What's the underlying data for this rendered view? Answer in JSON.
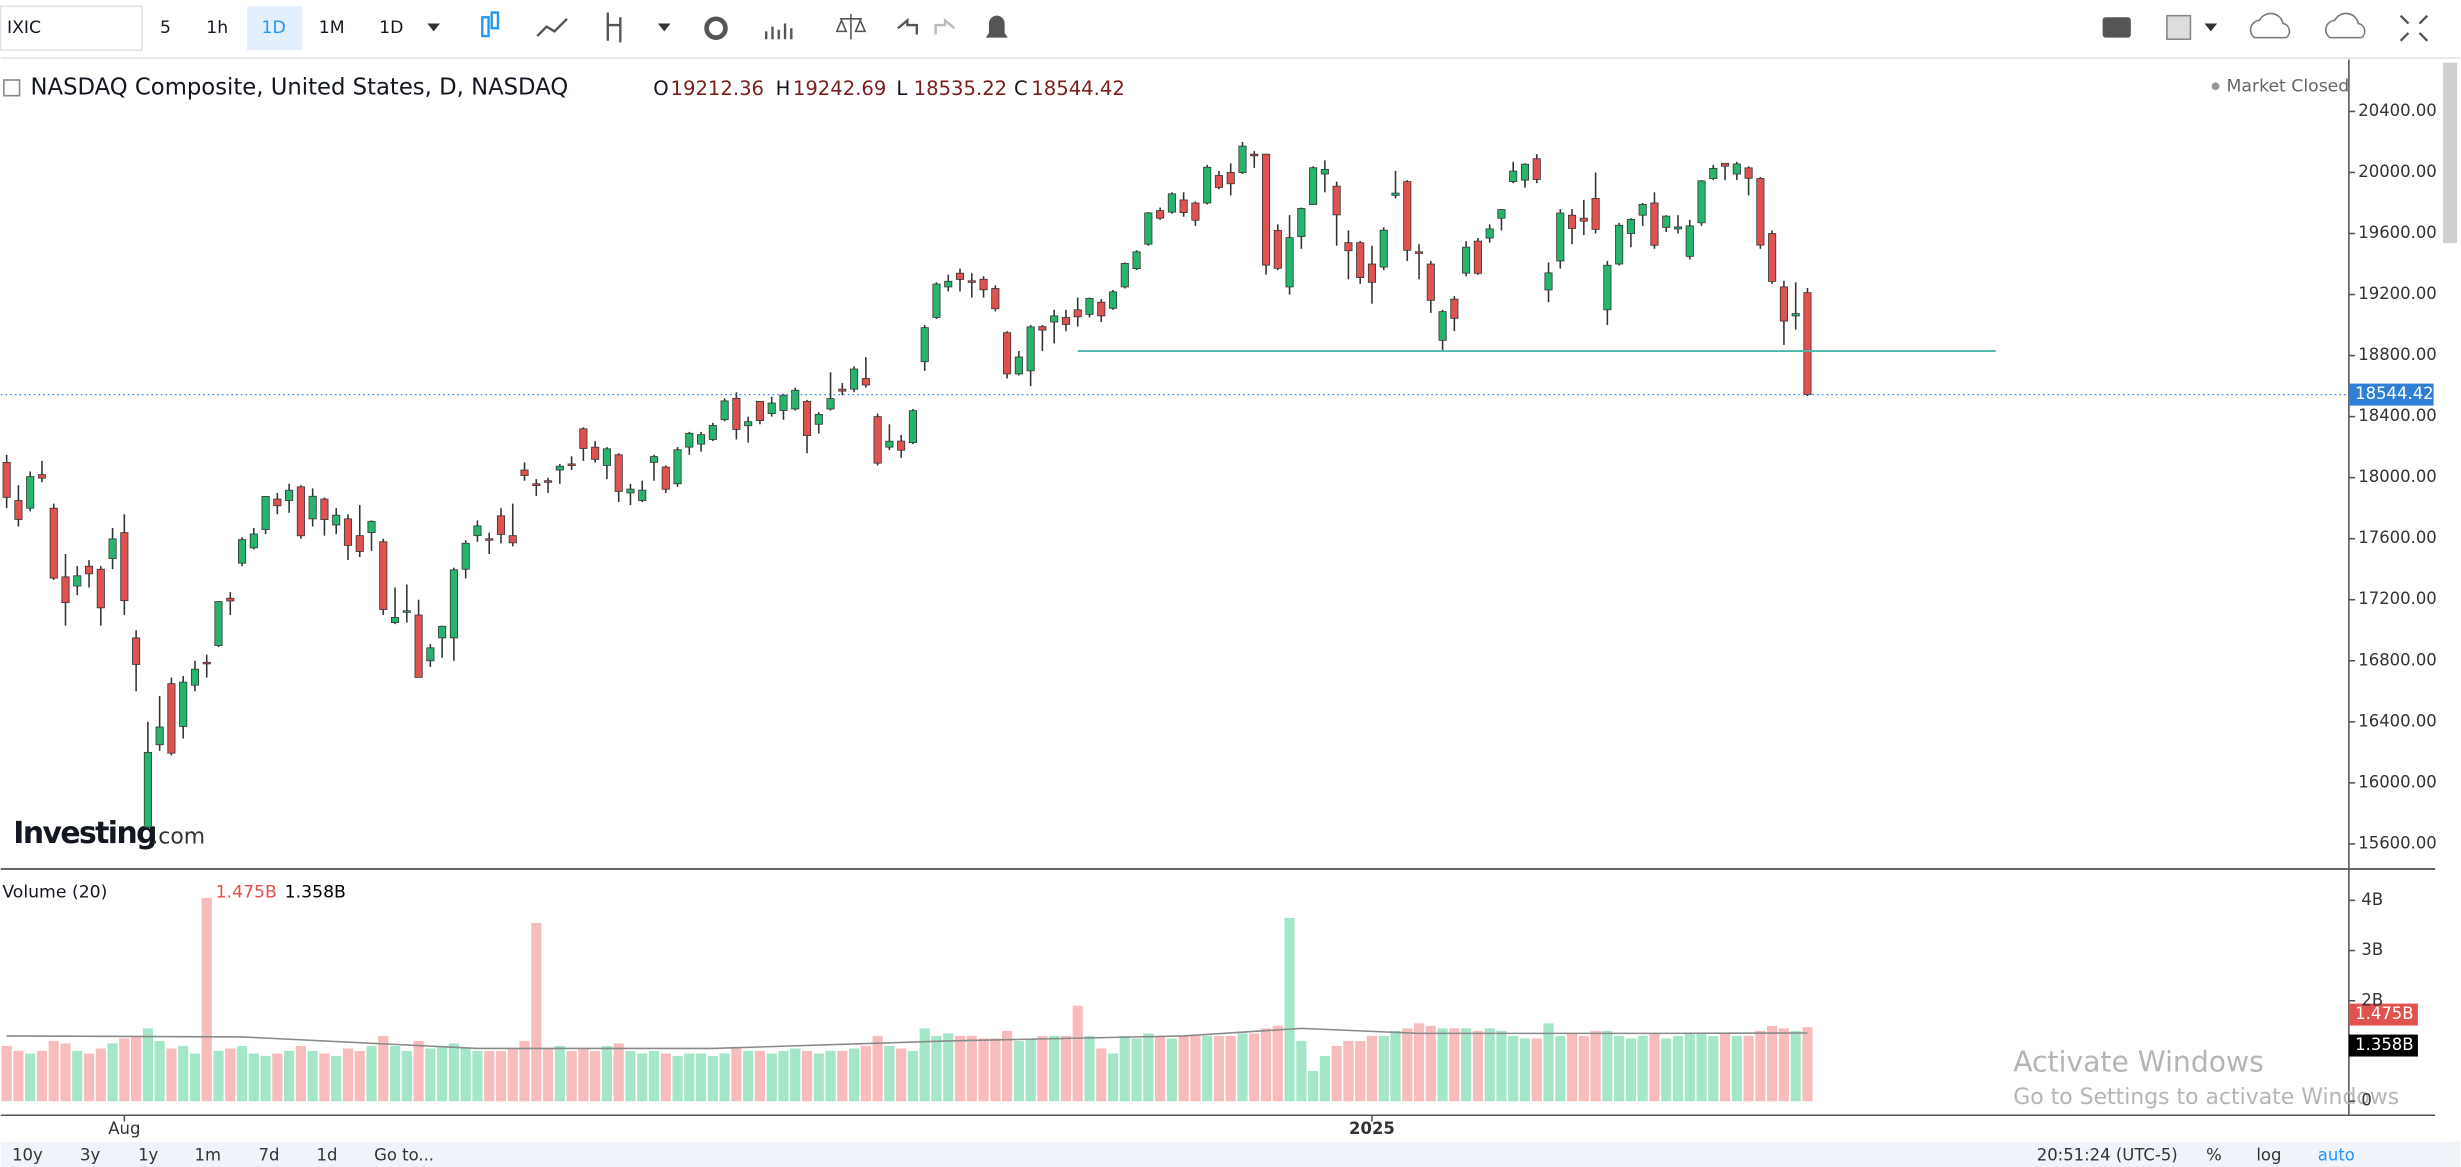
{
  "ui": {
    "symbol": "IXIC",
    "intervals": [
      "5",
      "1h",
      "1D",
      "1M",
      "1D"
    ],
    "title": "NASDAQ Composite, United States, D, NASDAQ",
    "ohlc_labels": [
      "O",
      "H",
      "L",
      "C"
    ],
    "status": "Market Closed",
    "volume_title": "Volume (20)",
    "watermark": [
      "Investing",
      ".com"
    ],
    "ranges": [
      "10y",
      "3y",
      "1y",
      "1m",
      "7d",
      "1d"
    ],
    "goto": "Go to...",
    "time": "20:51:24 (UTC-5)",
    "options": [
      "%",
      "log",
      "auto"
    ],
    "overlay": [
      "Activate Windows",
      "Go to Settings to activate Windows"
    ]
  },
  "chart_data": {
    "type": "candlestick",
    "up_color": "#26b56c",
    "down_color": "#e0524f",
    "ylim": [
      15446,
      20719
    ],
    "yticks": [
      {
        "value": 15600,
        "label": "15600.00"
      },
      {
        "value": 16000,
        "label": "16000.00"
      },
      {
        "value": 16400,
        "label": "16400.00"
      },
      {
        "value": 16800,
        "label": "16800.00"
      },
      {
        "value": 17200,
        "label": "17200.00"
      },
      {
        "value": 17600,
        "label": "17600.00"
      },
      {
        "value": 18000,
        "label": "18000.00"
      },
      {
        "value": 18400,
        "label": "18400.00"
      },
      {
        "value": 18800,
        "label": "18800.00"
      },
      {
        "value": 19200,
        "label": "19200.00"
      },
      {
        "value": 19600,
        "label": "19600.00"
      },
      {
        "value": 20000,
        "label": "20000.00"
      },
      {
        "value": 20400,
        "label": "20400.00"
      }
    ],
    "xlim": [
      -0.5,
      199
    ],
    "xticks": [
      {
        "value": 10,
        "label": "Aug"
      },
      {
        "value": 116,
        "label": "2025"
      }
    ],
    "ohlc": [
      [
        18100,
        18150,
        17800,
        17871
      ],
      [
        17850,
        17950,
        17680,
        17726
      ],
      [
        17800,
        18040,
        17780,
        18007
      ],
      [
        18020,
        18110,
        17970,
        17997
      ],
      [
        17800,
        17830,
        17330,
        17342
      ],
      [
        17350,
        17500,
        17030,
        17181
      ],
      [
        17290,
        17420,
        17230,
        17357
      ],
      [
        17420,
        17460,
        17280,
        17370
      ],
      [
        17400,
        17420,
        17030,
        17147
      ],
      [
        17470,
        17670,
        17400,
        17599
      ],
      [
        17640,
        17760,
        17100,
        17194
      ],
      [
        16950,
        17000,
        16600,
        16776
      ],
      [
        15710,
        16400,
        15700,
        16200
      ],
      [
        16250,
        16570,
        16210,
        16366
      ],
      [
        16650,
        16690,
        16180,
        16195
      ],
      [
        16370,
        16700,
        16290,
        16660
      ],
      [
        16640,
        16800,
        16600,
        16745
      ],
      [
        16790,
        16840,
        16690,
        16780
      ],
      [
        16900,
        17190,
        16890,
        17188
      ],
      [
        17210,
        17250,
        17100,
        17192
      ],
      [
        17440,
        17610,
        17420,
        17594
      ],
      [
        17540,
        17670,
        17530,
        17631
      ],
      [
        17660,
        17880,
        17630,
        17877
      ],
      [
        17860,
        17900,
        17760,
        17816
      ],
      [
        17850,
        17960,
        17770,
        17918
      ],
      [
        17940,
        17950,
        17600,
        17619
      ],
      [
        17730,
        17930,
        17680,
        17878
      ],
      [
        17860,
        17870,
        17620,
        17725
      ],
      [
        17690,
        17800,
        17630,
        17754
      ],
      [
        17730,
        17760,
        17460,
        17556
      ],
      [
        17620,
        17820,
        17480,
        17516
      ],
      [
        17640,
        17720,
        17520,
        17714
      ],
      [
        17580,
        17600,
        17100,
        17136
      ],
      [
        17050,
        17280,
        17040,
        17084
      ],
      [
        17120,
        17300,
        17050,
        17128
      ],
      [
        17100,
        17200,
        16690,
        16691
      ],
      [
        16800,
        16910,
        16760,
        16885
      ],
      [
        16950,
        17030,
        16820,
        17026
      ],
      [
        16950,
        17410,
        16800,
        17396
      ],
      [
        17400,
        17590,
        17340,
        17570
      ],
      [
        17620,
        17720,
        17580,
        17684
      ],
      [
        17600,
        17640,
        17500,
        17592
      ],
      [
        17750,
        17800,
        17570,
        17628
      ],
      [
        17620,
        17830,
        17550,
        17573
      ],
      [
        18050,
        18100,
        17980,
        18014
      ],
      [
        17960,
        17990,
        17880,
        17948
      ],
      [
        17980,
        18000,
        17900,
        17974
      ],
      [
        18050,
        18090,
        17960,
        18075
      ],
      [
        18090,
        18140,
        18050,
        18082
      ],
      [
        18320,
        18330,
        18110,
        18191
      ],
      [
        18200,
        18240,
        18100,
        18120
      ],
      [
        18080,
        18200,
        17990,
        18189
      ],
      [
        18150,
        18160,
        17840,
        17910
      ],
      [
        17900,
        17960,
        17820,
        17925
      ],
      [
        17850,
        17980,
        17840,
        17918
      ],
      [
        18100,
        18150,
        17980,
        18138
      ],
      [
        18070,
        18080,
        17900,
        17924
      ],
      [
        17960,
        18200,
        17940,
        18183
      ],
      [
        18200,
        18300,
        18150,
        18291
      ],
      [
        18220,
        18300,
        18170,
        18282
      ],
      [
        18250,
        18360,
        18240,
        18342
      ],
      [
        18380,
        18520,
        18370,
        18503
      ],
      [
        18520,
        18560,
        18250,
        18316
      ],
      [
        18340,
        18400,
        18230,
        18367
      ],
      [
        18500,
        18500,
        18350,
        18374
      ],
      [
        18420,
        18530,
        18400,
        18489
      ],
      [
        18440,
        18550,
        18380,
        18540
      ],
      [
        18450,
        18590,
        18440,
        18573
      ],
      [
        18500,
        18510,
        18160,
        18276
      ],
      [
        18350,
        18430,
        18290,
        18415
      ],
      [
        18450,
        18690,
        18440,
        18518
      ],
      [
        18580,
        18620,
        18540,
        18567
      ],
      [
        18580,
        18730,
        18560,
        18712
      ],
      [
        18650,
        18790,
        18590,
        18607
      ],
      [
        18400,
        18420,
        18080,
        18095
      ],
      [
        18200,
        18350,
        18180,
        18239
      ],
      [
        18240,
        18280,
        18130,
        18180
      ],
      [
        18230,
        18450,
        18220,
        18439
      ],
      [
        18760,
        19000,
        18700,
        18983
      ],
      [
        19050,
        19280,
        19040,
        19269
      ],
      [
        19250,
        19330,
        19220,
        19287
      ],
      [
        19340,
        19370,
        19220,
        19299
      ],
      [
        19290,
        19340,
        19180,
        19281
      ],
      [
        19300,
        19320,
        19180,
        19231
      ],
      [
        19240,
        19260,
        19090,
        19107
      ],
      [
        18950,
        18960,
        18650,
        18680
      ],
      [
        18680,
        18830,
        18670,
        18791
      ],
      [
        18700,
        19000,
        18600,
        18988
      ],
      [
        18990,
        19000,
        18830,
        18967
      ],
      [
        19020,
        19100,
        18880,
        19060
      ],
      [
        19050,
        19100,
        18960,
        19004
      ],
      [
        19100,
        19180,
        18990,
        19054
      ],
      [
        19070,
        19180,
        19050,
        19175
      ],
      [
        19150,
        19170,
        19020,
        19060
      ],
      [
        19110,
        19230,
        19100,
        19218
      ],
      [
        19250,
        19410,
        19240,
        19404
      ],
      [
        19370,
        19490,
        19360,
        19480
      ],
      [
        19530,
        19740,
        19520,
        19735
      ],
      [
        19750,
        19770,
        19690,
        19700
      ],
      [
        19740,
        19870,
        19730,
        19860
      ],
      [
        19820,
        19870,
        19710,
        19737
      ],
      [
        19800,
        19810,
        19650,
        19687
      ],
      [
        19800,
        20050,
        19790,
        20034
      ],
      [
        19980,
        20010,
        19890,
        19902
      ],
      [
        20000,
        20060,
        19850,
        19926
      ],
      [
        20000,
        20200,
        19990,
        20173
      ],
      [
        20120,
        20140,
        20030,
        20109
      ],
      [
        20120,
        20120,
        19330,
        19393
      ],
      [
        19620,
        19660,
        19360,
        19372
      ],
      [
        19250,
        19720,
        19200,
        19573
      ],
      [
        19580,
        19770,
        19500,
        19764
      ],
      [
        19790,
        20040,
        19790,
        20031
      ],
      [
        19990,
        20080,
        19870,
        20020
      ],
      [
        19910,
        19940,
        19520,
        19722
      ],
      [
        19540,
        19620,
        19300,
        19487
      ],
      [
        19540,
        19550,
        19270,
        19311
      ],
      [
        19400,
        19520,
        19140,
        19280
      ],
      [
        19380,
        19640,
        19360,
        19622
      ],
      [
        19850,
        20010,
        19830,
        19865
      ],
      [
        19940,
        19950,
        19420,
        19490
      ],
      [
        19480,
        19530,
        19300,
        19478
      ],
      [
        19400,
        19420,
        19080,
        19162
      ],
      [
        18900,
        19100,
        18830,
        19088
      ],
      [
        19170,
        19190,
        18960,
        19044
      ],
      [
        19340,
        19550,
        19320,
        19511
      ],
      [
        19550,
        19570,
        19330,
        19339
      ],
      [
        19570,
        19660,
        19540,
        19630
      ],
      [
        19700,
        19760,
        19620,
        19757
      ],
      [
        19940,
        20070,
        19930,
        20009
      ],
      [
        19950,
        20060,
        19900,
        20054
      ],
      [
        20090,
        20120,
        19930,
        19954
      ],
      [
        19230,
        19410,
        19150,
        19342
      ],
      [
        19420,
        19760,
        19370,
        19734
      ],
      [
        19720,
        19760,
        19530,
        19633
      ],
      [
        19700,
        19820,
        19590,
        19681
      ],
      [
        19830,
        20000,
        19600,
        19627
      ],
      [
        19100,
        19420,
        19000,
        19392
      ],
      [
        19400,
        19670,
        19390,
        19654
      ],
      [
        19600,
        19700,
        19510,
        19692
      ],
      [
        19720,
        19800,
        19650,
        19791
      ],
      [
        19800,
        19870,
        19500,
        19523
      ],
      [
        19640,
        19720,
        19610,
        19714
      ],
      [
        19630,
        19720,
        19600,
        19643
      ],
      [
        19450,
        19690,
        19430,
        19650
      ],
      [
        19670,
        19950,
        19650,
        19945
      ],
      [
        19960,
        20050,
        19950,
        20027
      ],
      [
        20060,
        20060,
        19950,
        20041
      ],
      [
        19990,
        20070,
        19950,
        20056
      ],
      [
        20030,
        20040,
        19850,
        19962
      ],
      [
        19960,
        19970,
        19500,
        19524
      ],
      [
        19600,
        19620,
        19270,
        19286
      ],
      [
        19250,
        19290,
        18870,
        19026
      ],
      [
        19060,
        19280,
        18970,
        19075
      ],
      [
        19212.36,
        19242.69,
        18535.22,
        18544.42
      ]
    ],
    "price_line_color": "#2f7fd6",
    "lines": [
      {
        "x": [
          91,
          169
        ],
        "value": 18830,
        "color": "#4db6ac"
      }
    ],
    "volume": {
      "ylim": [
        -0.28,
        4.5
      ],
      "yticks": [
        0,
        {
          "value": 2,
          "label": "2B"
        },
        {
          "value": 3,
          "label": "3B"
        },
        {
          "value": 4,
          "label": "4B"
        }
      ],
      "up_color": "#a4e6c8",
      "down_color": "#f9bcbc",
      "values": [
        1.1,
        1.0,
        0.95,
        1.0,
        1.2,
        1.15,
        1.0,
        0.95,
        1.05,
        1.15,
        1.25,
        1.3,
        1.45,
        1.2,
        1.05,
        1.1,
        0.95,
        4.05,
        1.0,
        1.05,
        1.1,
        0.95,
        0.9,
        0.95,
        1.0,
        1.1,
        1.0,
        0.95,
        0.9,
        1.05,
        1.0,
        1.1,
        1.3,
        1.1,
        1.0,
        1.2,
        1.05,
        1.1,
        1.15,
        1.05,
        1.0,
        1.0,
        1.0,
        1.05,
        1.2,
        3.55,
        1.05,
        1.1,
        1.0,
        1.05,
        1.0,
        1.1,
        1.15,
        1.0,
        0.95,
        1.0,
        0.95,
        0.9,
        0.95,
        0.95,
        0.9,
        0.95,
        1.05,
        1.0,
        1.0,
        0.95,
        1.0,
        1.05,
        1.0,
        0.95,
        1.0,
        1.0,
        1.05,
        1.1,
        1.3,
        1.1,
        1.05,
        1.0,
        1.45,
        1.3,
        1.35,
        1.3,
        1.3,
        1.25,
        1.25,
        1.4,
        1.2,
        1.25,
        1.3,
        1.3,
        1.3,
        1.9,
        1.3,
        1.05,
        0.95,
        1.3,
        1.25,
        1.35,
        1.3,
        1.25,
        1.3,
        1.3,
        1.3,
        1.3,
        1.3,
        1.35,
        1.35,
        1.45,
        1.5,
        3.65,
        1.2,
        0.6,
        0.9,
        1.1,
        1.2,
        1.2,
        1.3,
        1.3,
        1.4,
        1.45,
        1.55,
        1.5,
        1.45,
        1.45,
        1.45,
        1.4,
        1.45,
        1.4,
        1.3,
        1.25,
        1.25,
        1.55,
        1.3,
        1.35,
        1.3,
        1.4,
        1.4,
        1.3,
        1.25,
        1.3,
        1.35,
        1.25,
        1.3,
        1.35,
        1.35,
        1.3,
        1.35,
        1.3,
        1.3,
        1.4,
        1.5,
        1.45,
        1.4,
        1.475
      ],
      "current": {
        "value": 1.475,
        "label": "1.475B"
      },
      "ma": {
        "name": "Volume (20)",
        "color": "#8a8a8a",
        "x": [
          0,
          20,
          40,
          60,
          80,
          100,
          110,
          120,
          140,
          153
        ],
        "values": [
          1.3,
          1.28,
          1.05,
          1.05,
          1.2,
          1.3,
          1.45,
          1.35,
          1.35,
          1.358
        ],
        "current": {
          "value": 1.358,
          "label": "1.358B"
        }
      }
    }
  }
}
